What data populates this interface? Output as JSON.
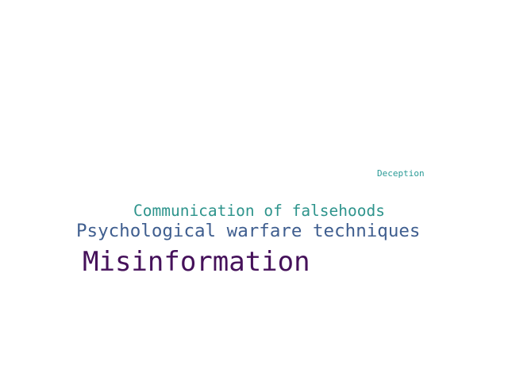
{
  "words": [
    {
      "text": "Deception",
      "color": "#2a9a96"
    },
    {
      "text": "Communication of falsehoods",
      "color": "#2e948c"
    },
    {
      "text": "Psychological warfare techniques",
      "color": "#3f5e8f"
    },
    {
      "text": "Misinformation",
      "color": "#45115a"
    }
  ]
}
